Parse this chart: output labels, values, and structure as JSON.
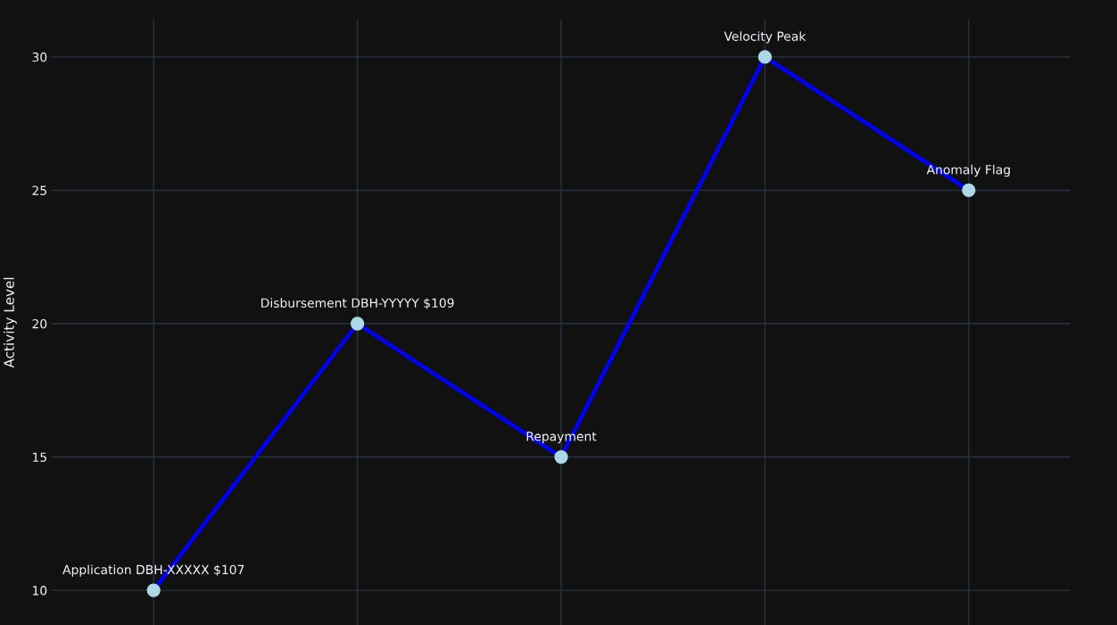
{
  "chart_data": {
    "type": "line",
    "ylabel": "Activity Level",
    "categories": [
      null,
      null,
      null,
      null,
      null
    ],
    "series": [
      {
        "color": "#0000ff",
        "values": [
          10,
          20,
          15,
          30,
          25
        ]
      }
    ],
    "marker": "circle",
    "ylim": [
      8.7,
      31.4
    ],
    "yticks": [
      10,
      15,
      20,
      25,
      30
    ],
    "tick_labels": "y",
    "grid": true,
    "annotations": [
      {
        "text": "Application DBH-XXXXX $107",
        "y": 10
      },
      {
        "text": "Disbursement DBH-YYYYY $109",
        "y": 20
      },
      {
        "text": "Repayment",
        "y": 15
      },
      {
        "text": "Velocity Peak",
        "y": 30
      },
      {
        "text": "Anomaly Flag",
        "y": 25
      }
    ]
  }
}
